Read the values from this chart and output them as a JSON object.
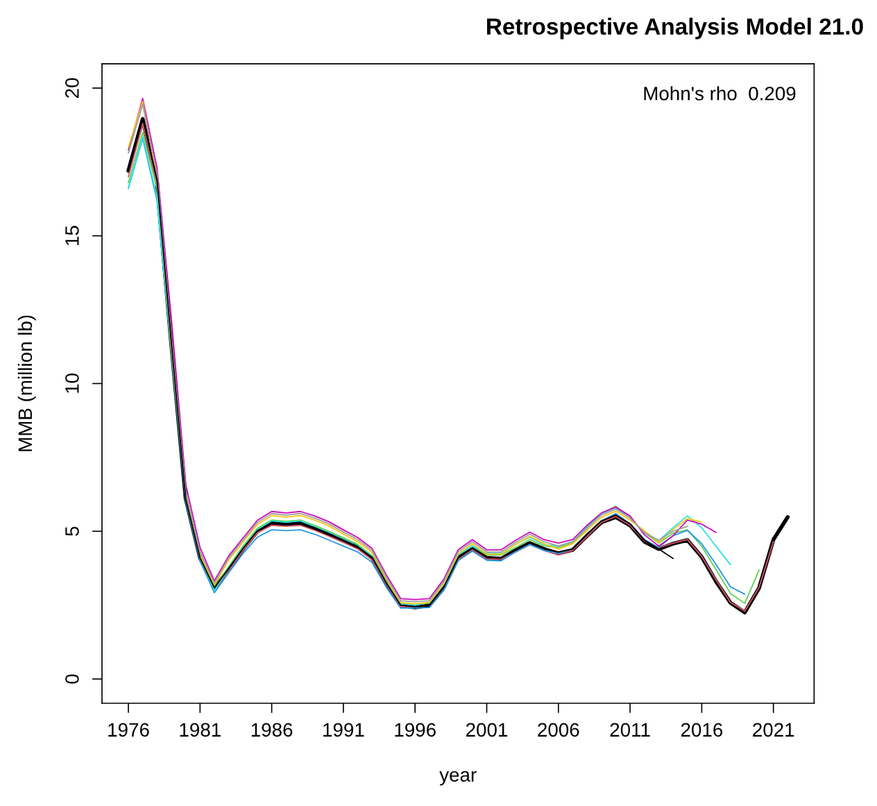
{
  "chart_data": {
    "type": "line",
    "title": "Retrospective Analysis Model 21.0",
    "xlabel": "year",
    "ylabel": "MMB (million lb)",
    "annotations": [
      "Mohn's rho  0.209"
    ],
    "x": [
      1976,
      1977,
      1978,
      1979,
      1980,
      1981,
      1982,
      1983,
      1984,
      1985,
      1986,
      1987,
      1988,
      1989,
      1990,
      1991,
      1992,
      1993,
      1994,
      1995,
      1996,
      1997,
      1998,
      1999,
      2000,
      2001,
      2002,
      2003,
      2004,
      2005,
      2006,
      2007,
      2008,
      2009,
      2010,
      2011,
      2012,
      2013,
      2014,
      2015,
      2016,
      2017,
      2018,
      2019,
      2020,
      2021,
      2022
    ],
    "xlim": [
      1974.16,
      2023.84
    ],
    "xticks": [
      1976,
      1981,
      1986,
      1991,
      1996,
      2001,
      2006,
      2011,
      2016,
      2021
    ],
    "ylim": [
      -0.82,
      20.82
    ],
    "yticks": [
      0,
      5,
      10,
      15,
      20
    ],
    "grid": false,
    "legend": false,
    "marker": "none",
    "line_style": "solid",
    "series": [
      {
        "color": "#000000",
        "values": [
          17.2,
          18.95,
          16.8,
          11.3,
          6.1,
          4.1,
          3.08,
          3.7,
          4.4,
          5.0,
          5.28,
          5.24,
          5.28,
          5.1,
          4.9,
          4.68,
          4.47,
          4.1,
          3.25,
          2.5,
          2.42,
          2.5,
          3.1,
          4.1,
          4.4,
          4.1,
          4.07,
          4.35,
          4.6,
          4.4,
          4.25,
          4.37,
          4.85,
          5.3,
          5.48,
          5.2,
          4.65,
          4.4,
          4.58,
          4.7,
          4.13,
          3.3,
          2.58,
          2.25,
          3.08,
          4.72,
          5.48
        ]
      },
      {
        "color": "#df536b",
        "values": [
          17.0,
          18.8,
          16.7,
          11.25,
          6.05,
          4.05,
          3.0,
          3.65,
          4.35,
          4.95,
          5.2,
          5.17,
          5.2,
          5.03,
          4.83,
          4.62,
          4.4,
          4.03,
          3.2,
          2.45,
          2.45,
          2.5,
          3.07,
          4.05,
          4.38,
          4.06,
          4.05,
          4.3,
          4.55,
          4.35,
          4.2,
          4.35,
          4.82,
          5.3,
          5.5,
          5.2,
          4.68,
          4.45,
          4.6,
          4.72,
          4.15,
          3.35,
          2.6,
          2.3,
          3.1,
          4.65,
          null
        ]
      },
      {
        "color": "#61d04f",
        "values": [
          16.8,
          18.5,
          16.6,
          11.3,
          6.2,
          4.15,
          3.1,
          3.8,
          4.5,
          5.1,
          5.38,
          5.34,
          5.38,
          5.2,
          5.0,
          4.78,
          4.55,
          4.18,
          3.3,
          2.55,
          2.5,
          2.6,
          3.2,
          4.2,
          4.5,
          4.2,
          4.2,
          4.45,
          4.72,
          4.5,
          4.45,
          4.6,
          5.1,
          5.6,
          5.85,
          5.45,
          4.95,
          4.6,
          4.93,
          5.05,
          4.49,
          3.7,
          2.9,
          2.56,
          3.69,
          null,
          null
        ]
      },
      {
        "color": "#2297e6",
        "values": [
          16.6,
          18.3,
          16.2,
          11.0,
          6.0,
          4.0,
          2.92,
          3.6,
          4.25,
          4.8,
          5.05,
          5.02,
          5.05,
          4.9,
          4.7,
          4.5,
          4.3,
          3.95,
          3.1,
          2.4,
          2.4,
          2.42,
          3.0,
          4.0,
          4.33,
          4.02,
          4.0,
          4.3,
          4.55,
          4.35,
          4.25,
          4.4,
          4.9,
          5.35,
          5.6,
          5.25,
          4.72,
          4.45,
          4.85,
          5.03,
          4.58,
          3.87,
          3.12,
          2.87,
          null,
          null,
          null
        ]
      },
      {
        "color": "#28e2e5",
        "values": [
          16.6,
          18.35,
          16.3,
          11.1,
          6.1,
          4.1,
          3.0,
          3.75,
          4.45,
          5.05,
          5.35,
          5.3,
          5.35,
          5.15,
          4.95,
          4.72,
          4.5,
          4.15,
          3.28,
          2.55,
          2.5,
          2.58,
          3.2,
          4.2,
          4.5,
          4.25,
          4.25,
          4.55,
          4.8,
          4.55,
          4.5,
          4.65,
          5.15,
          5.6,
          5.8,
          5.45,
          4.95,
          4.68,
          5.12,
          5.52,
          5.12,
          4.49,
          3.87,
          null,
          null,
          null,
          null
        ]
      },
      {
        "color": "#cd0bbc",
        "values": [
          17.9,
          19.65,
          17.3,
          12.2,
          6.6,
          4.45,
          3.32,
          4.17,
          4.77,
          5.37,
          5.67,
          5.62,
          5.67,
          5.52,
          5.32,
          5.05,
          4.79,
          4.42,
          3.52,
          2.72,
          2.69,
          2.72,
          3.37,
          4.37,
          4.72,
          4.37,
          4.37,
          4.69,
          4.97,
          4.72,
          4.6,
          4.72,
          5.2,
          5.62,
          5.82,
          5.52,
          4.88,
          4.5,
          4.85,
          5.38,
          5.24,
          4.96,
          null,
          null,
          null,
          null,
          null
        ]
      },
      {
        "color": "#f5c710",
        "values": [
          18.0,
          19.55,
          16.9,
          11.2,
          6.15,
          4.2,
          3.18,
          4.03,
          4.63,
          5.23,
          5.53,
          5.48,
          5.53,
          5.38,
          5.18,
          4.91,
          4.65,
          4.28,
          3.38,
          2.58,
          2.55,
          2.58,
          3.23,
          4.23,
          4.58,
          4.23,
          4.23,
          4.55,
          4.83,
          4.58,
          4.4,
          4.58,
          5.03,
          5.48,
          5.68,
          5.38,
          5.02,
          4.62,
          5.06,
          5.43,
          5.31,
          null,
          null,
          null,
          null,
          null,
          null
        ]
      },
      {
        "color": "#9e9e9e",
        "values": [
          17.8,
          19.45,
          17.1,
          11.6,
          6.35,
          4.3,
          3.25,
          4.1,
          4.7,
          5.3,
          5.6,
          5.55,
          5.6,
          5.45,
          5.25,
          4.98,
          4.72,
          4.35,
          3.45,
          2.65,
          2.62,
          2.65,
          3.3,
          4.3,
          4.65,
          4.3,
          4.3,
          4.62,
          4.9,
          4.65,
          4.5,
          4.65,
          5.1,
          5.55,
          5.75,
          5.45,
          4.95,
          4.7,
          5.0,
          5.17,
          null,
          null,
          null,
          null,
          null,
          null,
          null
        ]
      },
      {
        "color": "#000000",
        "values": [
          17.2,
          19.0,
          16.9,
          11.35,
          6.1,
          4.1,
          3.08,
          3.75,
          4.42,
          5.02,
          5.3,
          5.26,
          5.3,
          5.12,
          4.92,
          4.7,
          4.48,
          4.12,
          3.25,
          2.5,
          2.45,
          2.5,
          3.1,
          4.1,
          4.42,
          4.12,
          4.1,
          4.38,
          4.62,
          4.42,
          4.3,
          4.4,
          4.9,
          5.35,
          5.55,
          5.25,
          4.7,
          4.4,
          4.08,
          null,
          null,
          null,
          null,
          null,
          null,
          null,
          null
        ]
      }
    ]
  }
}
